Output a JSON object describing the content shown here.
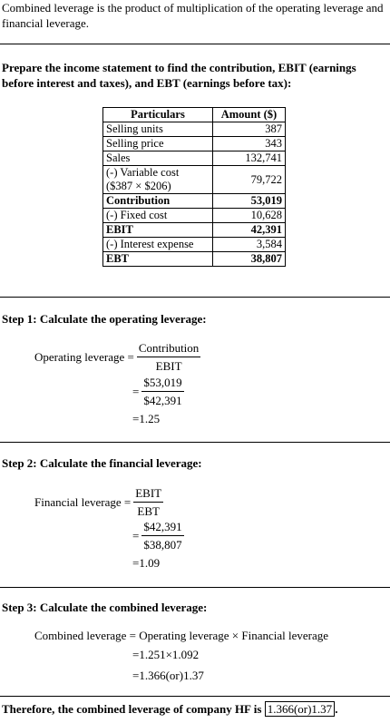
{
  "intro": "Combined leverage is the product of multiplication of the operating leverage and financial leverage.",
  "instruction": "Prepare the income statement to find the contribution, EBIT (earnings before interest and taxes), and EBT (earnings before tax):",
  "table": {
    "header": [
      "Particulars",
      "Amount ($)"
    ],
    "rows": [
      {
        "label": "Selling units",
        "amount": "387",
        "bold": false
      },
      {
        "label": "Selling price",
        "amount": "343",
        "bold": false
      },
      {
        "label": "Sales",
        "amount": "132,741",
        "bold": false
      },
      {
        "label": "(-) Variable cost",
        "note": "($387 × $206)",
        "amount": "79,722",
        "bold": false
      },
      {
        "label": "Contribution",
        "amount": "53,019",
        "bold": true
      },
      {
        "label": "(-) Fixed cost",
        "amount": "10,628",
        "bold": false
      },
      {
        "label": "EBIT",
        "amount": "42,391",
        "bold": true
      },
      {
        "label": "(-) Interest expense",
        "amount": "3,584",
        "bold": false
      },
      {
        "label": "EBT",
        "amount": "38,807",
        "bold": true
      }
    ]
  },
  "steps": [
    {
      "heading": "Step 1: Calculate the operating leverage:",
      "lhs": "Operating leverage =",
      "numerator": "Contribution",
      "denominator": "EBIT",
      "equals": "=",
      "sub_numerator": "$53,019",
      "sub_denominator": "$42,391",
      "result": "=1.25"
    },
    {
      "heading": "Step 2: Calculate the financial leverage:",
      "lhs": "Financial leverage =",
      "numerator": "EBIT",
      "denominator": "EBT",
      "equals": "=",
      "sub_numerator": "$42,391",
      "sub_denominator": "$38,807",
      "result": "=1.09"
    },
    {
      "heading": "Step 3: Calculate the combined leverage:",
      "lines": [
        "Combined leverage = Operating leverage × Financial leverage",
        "=1.251×1.092",
        "=1.366(or)1.37"
      ]
    }
  ],
  "conclusion": {
    "text": "Therefore, the combined leverage of company HF is",
    "answer": "1.366(or)1.37",
    "end": "."
  }
}
